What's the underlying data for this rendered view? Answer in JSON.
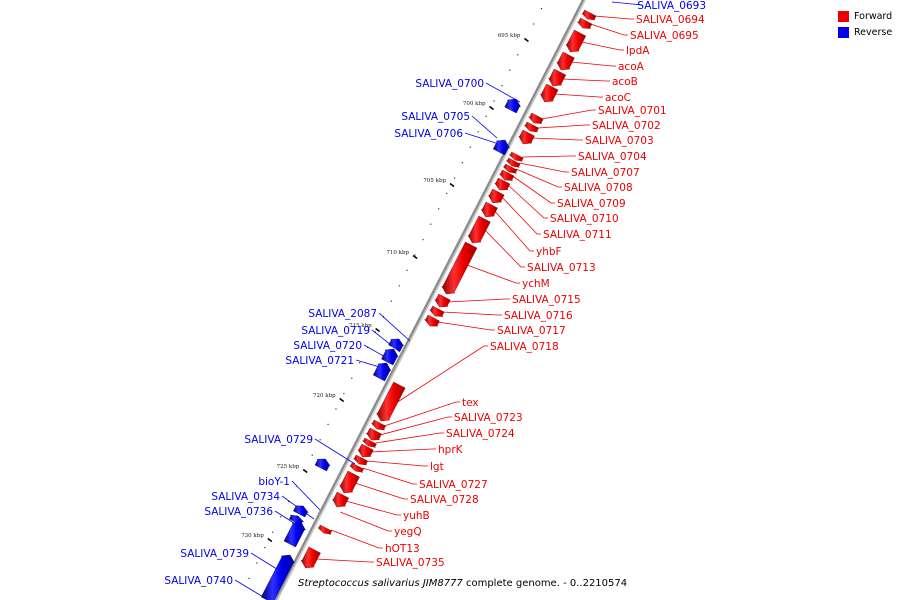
{
  "legend": {
    "items": [
      {
        "label": "Forward",
        "color": "#ee0000"
      },
      {
        "label": "Reverse",
        "color": "#0000ee"
      }
    ]
  },
  "footer": {
    "organism": "Streptococcus salivarius JIM8777",
    "rest": " complete genome. - 0..2210574"
  },
  "colors": {
    "forward": "#ee0000",
    "reverse": "#0000ee",
    "backbone": "#8a8a8a"
  },
  "kbp_marks": [
    "695 kbp",
    "700 kbp",
    "705 kbp",
    "710 kbp",
    "715 kbp",
    "720 kbp",
    "725 kbp",
    "730 kbp"
  ],
  "forward_genes": [
    "SALIVA_0694",
    "SALIVA_0695",
    "lpdA",
    "acoA",
    "acoB",
    "acoC",
    "SALIVA_0701",
    "SALIVA_0702",
    "SALIVA_0703",
    "SALIVA_0704",
    "SALIVA_0707",
    "SALIVA_0708",
    "SALIVA_0709",
    "SALIVA_0710",
    "SALIVA_0711",
    "yhbF",
    "SALIVA_0713",
    "ychM",
    "SALIVA_0715",
    "SALIVA_0716",
    "SALIVA_0717",
    "SALIVA_0718",
    "tex",
    "SALIVA_0723",
    "SALIVA_0724",
    "hprK",
    "lgt",
    "SALIVA_0727",
    "SALIVA_0728",
    "yuhB",
    "yegQ",
    "hOT13",
    "SALIVA_0735"
  ],
  "reverse_genes": [
    "SALIVA_0693",
    "SALIVA_0700",
    "SALIVA_0705",
    "SALIVA_0706",
    "SALIVA_2087",
    "SALIVA_0719",
    "SALIVA_0720",
    "SALIVA_0721",
    "SALIVA_0729",
    "bioY-1",
    "SALIVA_0734",
    "SALIVA_0736",
    "SALIVA_0739",
    "SALIVA_0740"
  ]
}
